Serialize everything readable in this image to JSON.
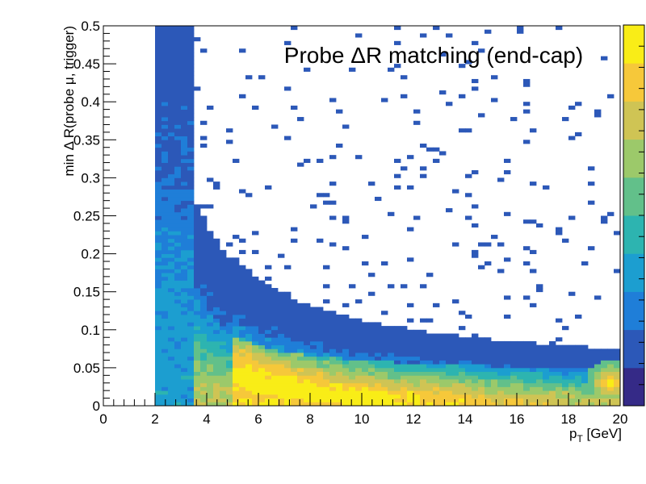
{
  "chart_data": {
    "type": "heatmap",
    "title": "Probe ΔR matching (end-cap)",
    "xlabel": "p",
    "xlabel_sub": "T",
    "xlabel_unit": " [GeV]",
    "ylabel": "min Δ R(probe μ, trigger)",
    "xlim": [
      0,
      20
    ],
    "ylim": [
      0,
      0.5
    ],
    "x_ticks": [
      "0",
      "2",
      "4",
      "6",
      "8",
      "10",
      "12",
      "14",
      "16",
      "18",
      "20"
    ],
    "y_ticks": [
      "0",
      "0.05",
      "0.1",
      "0.15",
      "0.2",
      "0.25",
      "0.3",
      "0.35",
      "0.4",
      "0.45",
      "0.5"
    ],
    "x_bins": 80,
    "y_bins": 100,
    "colormap": [
      "#352a87",
      "#2c58b8",
      "#1f7ed8",
      "#1c9ed0",
      "#2db4b0",
      "#62c08a",
      "#9cc96a",
      "#cfc454",
      "#f6c83a",
      "#f9ed17"
    ],
    "z_scale": "linear",
    "grid": false,
    "legend": "colorbar-right",
    "hotspot": {
      "x": 19.6,
      "y": 0.03
    }
  }
}
